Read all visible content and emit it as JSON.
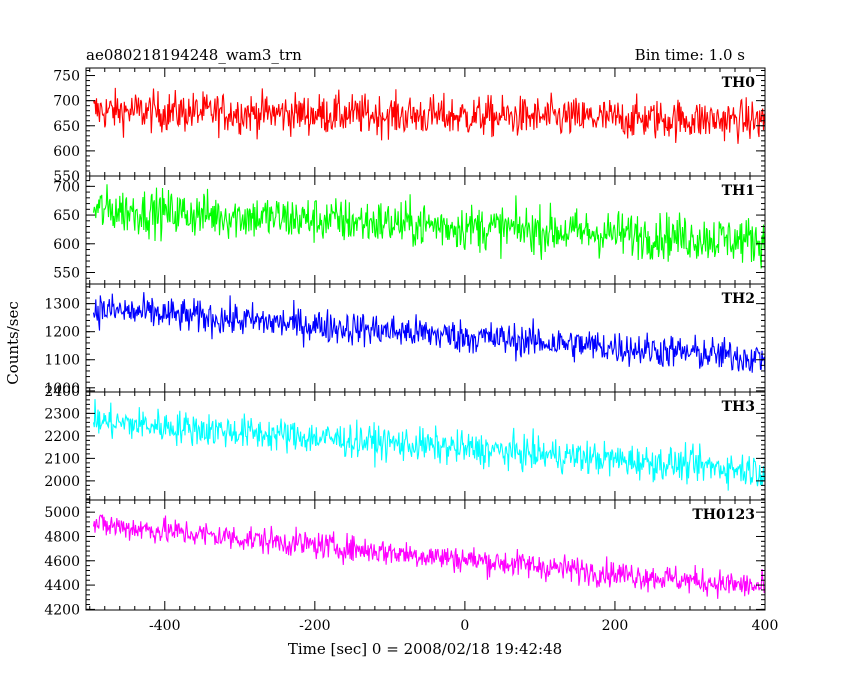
{
  "chart_data": {
    "type": "line",
    "title": "ae080218194248_wam3_trn",
    "subtitle": "Bin time: 1.0 s",
    "xlabel": "Time [sec] 0 = 2008/02/18 19:42:48",
    "ylabel": "Counts/sec",
    "xlim": [
      -505,
      400
    ],
    "xticks": [
      -400,
      -200,
      0,
      200,
      400
    ],
    "grid": false,
    "panels": [
      {
        "name": "TH0",
        "color": "#ff0000",
        "ylim": [
          550,
          765
        ],
        "yticks": [
          550,
          600,
          650,
          700,
          750
        ],
        "trend": [
          [
            -495,
            680
          ],
          [
            400,
            660
          ]
        ],
        "noise_amplitude": 40
      },
      {
        "name": "TH1",
        "color": "#00ff00",
        "ylim": [
          530,
          718
        ],
        "yticks": [
          550,
          600,
          650,
          700
        ],
        "trend": [
          [
            -495,
            660
          ],
          [
            400,
            605
          ]
        ],
        "noise_amplitude": 40
      },
      {
        "name": "TH2",
        "color": "#0000ff",
        "ylim": [
          985,
          1370
        ],
        "yticks": [
          1000,
          1100,
          1200,
          1300
        ],
        "trend": [
          [
            -495,
            1280
          ],
          [
            400,
            1105
          ]
        ],
        "noise_amplitude": 60
      },
      {
        "name": "TH3",
        "color": "#00ffff",
        "ylim": [
          1915,
          2395
        ],
        "yticks": [
          2000,
          2100,
          2200,
          2300,
          2400
        ],
        "trend": [
          [
            -495,
            2265
          ],
          [
            400,
            2045
          ]
        ],
        "noise_amplitude": 75
      },
      {
        "name": "TH0123",
        "color": "#ff00ff",
        "ylim": [
          4195,
          5100
        ],
        "yticks": [
          4200,
          4400,
          4600,
          4800,
          5000
        ],
        "trend": [
          [
            -495,
            4900
          ],
          [
            400,
            4380
          ]
        ],
        "noise_amplitude": 110
      }
    ]
  }
}
